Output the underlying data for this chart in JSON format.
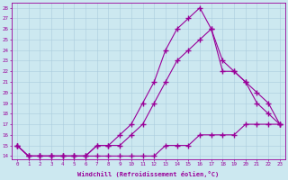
{
  "xlabel": "Windchill (Refroidissement éolien,°C)",
  "background_color": "#cce8f0",
  "line_color": "#990099",
  "xlim": [
    -0.5,
    23.5
  ],
  "ylim": [
    13.7,
    28.5
  ],
  "yticks": [
    14,
    15,
    16,
    17,
    18,
    19,
    20,
    21,
    22,
    23,
    24,
    25,
    26,
    27,
    28
  ],
  "xticks": [
    0,
    1,
    2,
    3,
    4,
    5,
    6,
    7,
    8,
    9,
    10,
    11,
    12,
    13,
    14,
    15,
    16,
    17,
    18,
    19,
    20,
    21,
    22,
    23
  ],
  "line1_x": [
    0,
    1,
    2,
    3,
    4,
    5,
    6,
    7,
    8,
    9,
    10,
    11,
    12,
    13,
    14,
    15,
    16,
    17,
    18,
    19,
    20,
    21,
    22,
    23
  ],
  "line1_y": [
    15,
    14,
    14,
    14,
    14,
    14,
    14,
    14,
    14,
    14,
    14,
    14,
    14,
    15,
    15,
    15,
    16,
    16,
    16,
    16,
    17,
    17,
    17,
    17
  ],
  "line2_x": [
    0,
    1,
    2,
    3,
    4,
    5,
    6,
    7,
    8,
    9,
    10,
    11,
    12,
    13,
    14,
    15,
    16,
    17,
    18,
    19,
    20,
    21,
    22,
    23
  ],
  "line2_y": [
    15,
    14,
    14,
    14,
    14,
    14,
    14,
    15,
    15,
    15,
    16,
    17,
    19,
    21,
    23,
    24,
    25,
    26,
    22,
    22,
    21,
    20,
    19,
    17
  ],
  "line3_x": [
    0,
    1,
    2,
    3,
    4,
    5,
    6,
    7,
    8,
    9,
    10,
    11,
    12,
    13,
    14,
    15,
    16,
    17,
    18,
    19,
    20,
    21,
    22,
    23
  ],
  "line3_y": [
    15,
    14,
    14,
    14,
    14,
    14,
    14,
    15,
    15,
    16,
    17,
    19,
    21,
    24,
    26,
    27,
    28,
    26,
    23,
    22,
    21,
    19,
    18,
    17
  ]
}
